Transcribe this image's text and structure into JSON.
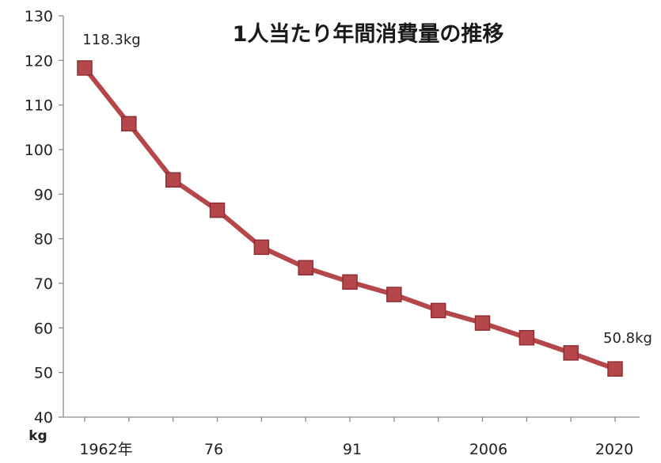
{
  "chart_data": {
    "type": "line",
    "title": "1人当たり年間消費量の推移",
    "ylabel": "kg",
    "xlabel": "",
    "ylim": [
      40,
      130
    ],
    "yticks": [
      40,
      50,
      60,
      70,
      80,
      90,
      100,
      110,
      120,
      130
    ],
    "x": [
      1962,
      1967,
      1972,
      1977,
      1982,
      1987,
      1992,
      1997,
      2002,
      2007,
      2012,
      2017,
      2022
    ],
    "xtick_labels": [
      "1962年",
      "76",
      "91",
      "2006",
      "2020"
    ],
    "grid": false,
    "legend": "none",
    "series": [
      {
        "color": "#b5474b",
        "marker": "square",
        "values": [
          118.3,
          105.8,
          93.2,
          86.4,
          78.1,
          73.5,
          70.3,
          67.5,
          63.9,
          61.1,
          57.8,
          54.4,
          50.8
        ]
      }
    ],
    "annotations": [
      {
        "index": 0,
        "text": "118.3kg"
      },
      {
        "index": 12,
        "text": "50.8kg"
      }
    ]
  }
}
